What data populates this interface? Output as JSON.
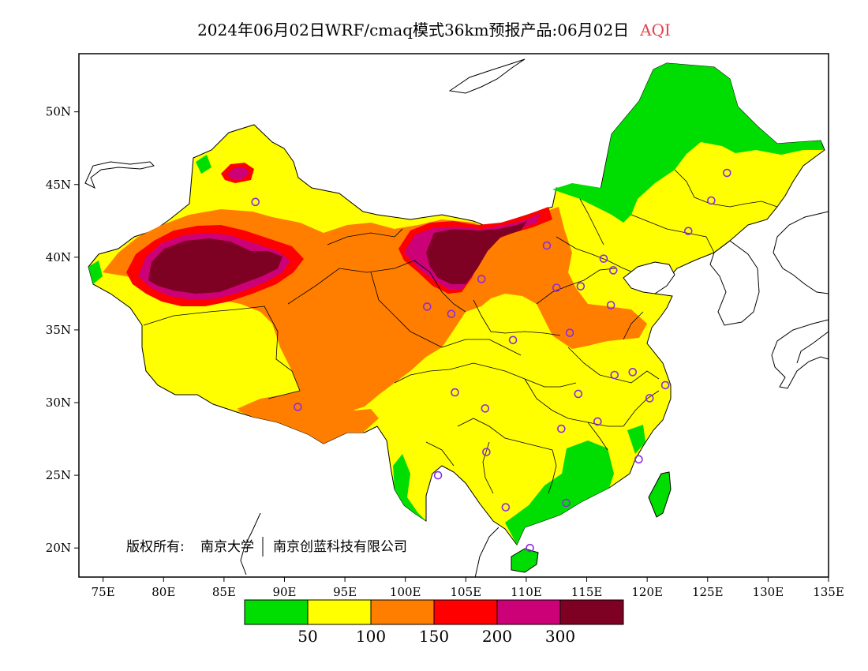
{
  "title": {
    "main": "2024年06月02日WRF/cmaq模式36km预报产品:06月02日",
    "variable": "AQI"
  },
  "axes": {
    "lon_labels": [
      "75E",
      "80E",
      "85E",
      "90E",
      "95E",
      "100E",
      "105E",
      "110E",
      "115E",
      "120E",
      "125E",
      "130E",
      "135E"
    ],
    "lat_labels": [
      "20N",
      "25N",
      "30N",
      "35N",
      "40N",
      "45N",
      "50N"
    ],
    "lon_range": [
      73,
      135
    ],
    "lat_range": [
      18,
      54
    ]
  },
  "copyright": {
    "prefix": "版权所有:",
    "org1": "南京大学",
    "org2": "南京创蓝科技有限公司"
  },
  "legend": {
    "colors": [
      "#00dd00",
      "#ffff00",
      "#ff7e00",
      "#ff0000",
      "#cc0077",
      "#7e0023"
    ],
    "labels": [
      "50",
      "100",
      "150",
      "200",
      "300"
    ]
  },
  "colors": {
    "good": "#00dd00",
    "moderate": "#ffff00",
    "usg": "#ff7e00",
    "unhealthy": "#ff0000",
    "very_unhealthy": "#cc0077",
    "hazardous": "#7e0023",
    "station_marker": "#8a2be2",
    "title_accent": "#e8404a"
  },
  "stations": [
    [
      87.6,
      43.8
    ],
    [
      101.8,
      36.6
    ],
    [
      103.8,
      36.1
    ],
    [
      106.3,
      38.5
    ],
    [
      111.7,
      40.8
    ],
    [
      112.5,
      37.9
    ],
    [
      114.5,
      38.0
    ],
    [
      116.4,
      39.9
    ],
    [
      117.2,
      39.1
    ],
    [
      117.0,
      36.7
    ],
    [
      113.6,
      34.8
    ],
    [
      108.9,
      34.3
    ],
    [
      104.1,
      30.7
    ],
    [
      106.6,
      29.6
    ],
    [
      106.7,
      26.6
    ],
    [
      102.7,
      25.0
    ],
    [
      108.3,
      22.8
    ],
    [
      113.3,
      23.1
    ],
    [
      110.3,
      20.0
    ],
    [
      112.9,
      28.2
    ],
    [
      114.3,
      30.6
    ],
    [
      115.9,
      28.7
    ],
    [
      117.3,
      31.9
    ],
    [
      118.8,
      32.1
    ],
    [
      120.2,
      30.3
    ],
    [
      121.5,
      31.2
    ],
    [
      119.3,
      26.1
    ],
    [
      126.6,
      45.8
    ],
    [
      125.3,
      43.9
    ],
    [
      123.4,
      41.8
    ],
    [
      91.1,
      29.7
    ]
  ]
}
